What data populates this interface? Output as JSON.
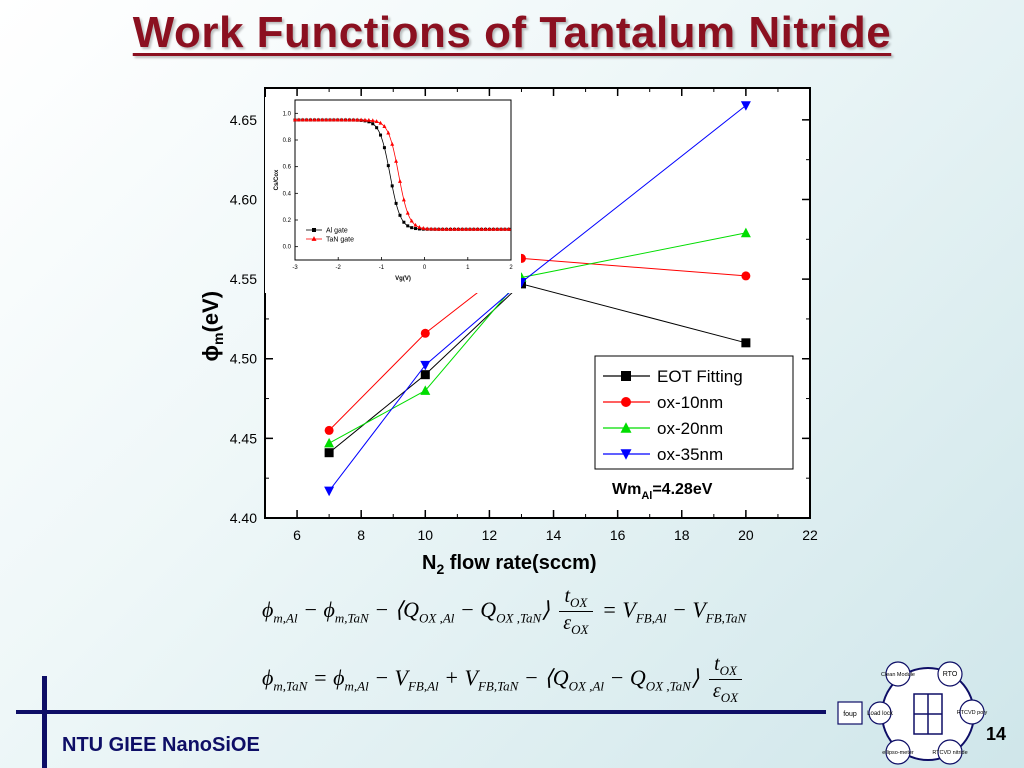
{
  "slide": {
    "title": "Work Functions of Tantalum Nitride",
    "footer": "NTU GIEE NanoSiOE",
    "page_number": "14"
  },
  "chart_data": [
    {
      "type": "line",
      "xlabel_main": "N",
      "xlabel_sub": "2",
      "xlabel_rest": " flow rate(sccm)",
      "ylabel_main": "ϕ",
      "ylabel_sub": "m",
      "ylabel_rest": "(eV)",
      "xlim": [
        5,
        22
      ],
      "ylim": [
        4.4,
        4.67
      ],
      "xticks": [
        "6",
        "8",
        "10",
        "12",
        "14",
        "16",
        "18",
        "20",
        "22"
      ],
      "yticks": [
        "4.40",
        "4.45",
        "4.50",
        "4.55",
        "4.60",
        "4.65"
      ],
      "x": [
        7,
        10,
        13,
        20
      ],
      "series": [
        {
          "name": "EOT Fitting",
          "marker": "square",
          "color": "#000000",
          "values": [
            4.441,
            4.49,
            4.547,
            4.51
          ]
        },
        {
          "name": "ox-10nm",
          "marker": "circle",
          "color": "#ff0000",
          "values": [
            4.455,
            4.516,
            4.563,
            4.552
          ]
        },
        {
          "name": "ox-20nm",
          "marker": "triangle-up",
          "color": "#00dd00",
          "values": [
            4.447,
            4.48,
            4.551,
            4.579
          ]
        },
        {
          "name": "ox-35nm",
          "marker": "triangle-down",
          "color": "#0000ff",
          "values": [
            4.417,
            4.496,
            4.548,
            4.659
          ]
        }
      ],
      "annotation": {
        "main": "Wm",
        "sub": "Al",
        "rest": "=4.28eV"
      },
      "legend": "inside-lower-right"
    },
    {
      "type": "line",
      "xlabel": "Vg(V)",
      "ylabel": "Cs/Cox",
      "xlim": [
        -3,
        2
      ],
      "ylim": [
        -0.1,
        1.1
      ],
      "xticks": [
        "-3",
        "-2",
        "-1",
        "0",
        "1",
        "2"
      ],
      "yticks": [
        "0.0",
        "0.2",
        "0.4",
        "0.6",
        "0.8",
        "1.0"
      ],
      "series": [
        {
          "name": "Al gate",
          "marker": "square",
          "color": "#000000",
          "midpoint": -0.8
        },
        {
          "name": "TaN gate",
          "marker": "triangle-up",
          "color": "#ff0000",
          "midpoint": -0.6
        }
      ],
      "legend": "inside-lower-left"
    }
  ],
  "equations": {
    "eq1": {
      "lhs": "ϕm,Al − ϕm,TaN − ⟨QOX,Al − QOX,TaN⟩ tOX/εOX",
      "rhs": "= VFB,Al − VFB,TaN"
    },
    "eq2": {
      "lhs": "ϕm,TaN = ϕm,Al − VFB,Al + VFB,TaN − ⟨QOX,Al − QOX,TaN⟩ tOX/εOX"
    }
  },
  "tool_diagram": {
    "foup": "foup",
    "load_lock": "Load lock",
    "clean_module": "Clean Module",
    "rto": "RTO",
    "rtcvd_poly": "RTCVD poly",
    "ellipsometer": "ellipso-meter",
    "rtcvd_nitride": "RTCVD nitride"
  },
  "colors": {
    "title": "#8b1020",
    "footer": "#0e0e66"
  }
}
